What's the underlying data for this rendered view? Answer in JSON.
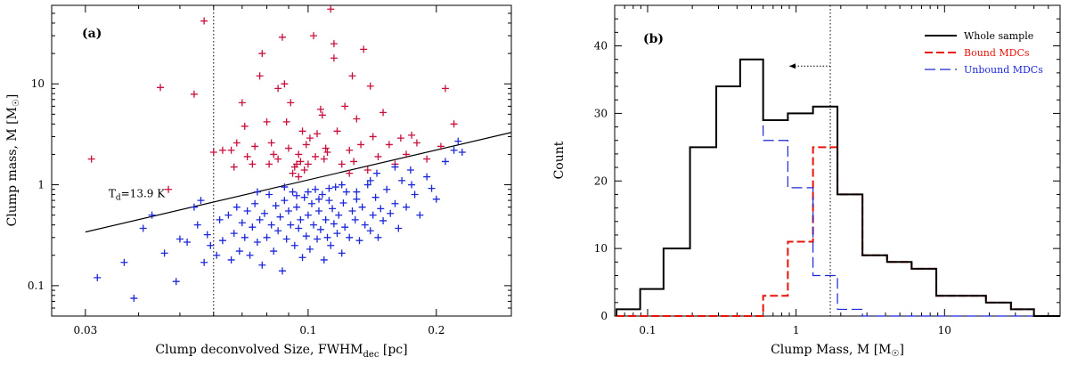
{
  "chart_data": [
    {
      "type": "scatter",
      "panel_label": "(a)",
      "xlabel_main": "Clump deconvolved Size, FWHM",
      "xlabel_sub": "dec",
      "xlabel_unit": " [pc]",
      "ylabel_main": "Clump mass, M [M",
      "ylabel_sun": "☉",
      "ylabel_close": "]",
      "xscale": "log",
      "yscale": "log",
      "xlim": [
        0.025,
        0.3
      ],
      "ylim": [
        0.05,
        60
      ],
      "xticks": [
        0.03,
        0.1,
        0.2
      ],
      "xtick_labels": [
        "0.03",
        "0.1",
        "0.2"
      ],
      "yticks": [
        0.1,
        1,
        10
      ],
      "ytick_labels": [
        "0.1",
        "1",
        "10"
      ],
      "vline_x": 0.06,
      "fit_line": {
        "x": [
          0.03,
          0.3
        ],
        "y": [
          0.34,
          3.3
        ]
      },
      "annotation_main": "T",
      "annotation_sub": "d",
      "annotation_rest": "=13.9 K",
      "annotation_at": {
        "x": 0.034,
        "y": 0.75
      },
      "colors": {
        "bound": "#c8103c",
        "unbound": "#1c28d8",
        "line": "#000000"
      },
      "series": [
        {
          "name": "Bound",
          "points": [
            [
              0.031,
              1.8
            ],
            [
              0.045,
              9.2
            ],
            [
              0.047,
              0.9
            ],
            [
              0.054,
              7.9
            ],
            [
              0.057,
              42
            ],
            [
              0.06,
              2.1
            ],
            [
              0.063,
              2.2
            ],
            [
              0.066,
              2.2
            ],
            [
              0.067,
              1.5
            ],
            [
              0.068,
              2.6
            ],
            [
              0.07,
              6.5
            ],
            [
              0.071,
              3.8
            ],
            [
              0.072,
              1.9
            ],
            [
              0.074,
              1.6
            ],
            [
              0.075,
              2.4
            ],
            [
              0.077,
              12
            ],
            [
              0.078,
              20
            ],
            [
              0.08,
              4.2
            ],
            [
              0.081,
              1.6
            ],
            [
              0.082,
              2.6
            ],
            [
              0.083,
              2.0
            ],
            [
              0.085,
              9.0
            ],
            [
              0.087,
              29
            ],
            [
              0.088,
              10
            ],
            [
              0.089,
              4.2
            ],
            [
              0.09,
              2.3
            ],
            [
              0.091,
              6.5
            ],
            [
              0.092,
              1.3
            ],
            [
              0.093,
              1.5
            ],
            [
              0.094,
              1.6
            ],
            [
              0.095,
              2.0
            ],
            [
              0.096,
              1.7
            ],
            [
              0.097,
              3.4
            ],
            [
              0.098,
              1.4
            ],
            [
              0.099,
              2.5
            ],
            [
              0.1,
              1.6
            ],
            [
              0.101,
              2.9
            ],
            [
              0.103,
              30
            ],
            [
              0.104,
              1.9
            ],
            [
              0.105,
              3.2
            ],
            [
              0.107,
              5.6
            ],
            [
              0.108,
              4.9
            ],
            [
              0.109,
              1.8
            ],
            [
              0.11,
              2.3
            ],
            [
              0.111,
              2.1
            ],
            [
              0.113,
              55
            ],
            [
              0.115,
              18
            ],
            [
              0.117,
              3.4
            ],
            [
              0.12,
              1.6
            ],
            [
              0.122,
              6.0
            ],
            [
              0.125,
              2.2
            ],
            [
              0.127,
              12
            ],
            [
              0.128,
              1.7
            ],
            [
              0.13,
              4.5
            ],
            [
              0.133,
              2.5
            ],
            [
              0.135,
              22
            ],
            [
              0.138,
              1.4
            ],
            [
              0.14,
              9.5
            ],
            [
              0.142,
              3.0
            ],
            [
              0.146,
              1.9
            ],
            [
              0.15,
              5.2
            ],
            [
              0.155,
              2.5
            ],
            [
              0.16,
              1.6
            ],
            [
              0.165,
              2.9
            ],
            [
              0.17,
              2.0
            ],
            [
              0.175,
              3.1
            ],
            [
              0.18,
              2.6
            ],
            [
              0.19,
              1.8
            ],
            [
              0.21,
              9.0
            ],
            [
              0.22,
              4.0
            ],
            [
              0.205,
              2.4
            ],
            [
              0.115,
              25
            ],
            [
              0.095,
              1.2
            ],
            [
              0.125,
              1.3
            ],
            [
              0.085,
              1.8
            ]
          ]
        },
        {
          "name": "Unbound",
          "points": [
            [
              0.032,
              0.12
            ],
            [
              0.037,
              0.17
            ],
            [
              0.039,
              0.075
            ],
            [
              0.041,
              0.37
            ],
            [
              0.043,
              0.5
            ],
            [
              0.046,
              0.21
            ],
            [
              0.049,
              0.11
            ],
            [
              0.05,
              0.29
            ],
            [
              0.052,
              0.27
            ],
            [
              0.054,
              0.6
            ],
            [
              0.055,
              0.4
            ],
            [
              0.056,
              0.7
            ],
            [
              0.057,
              0.17
            ],
            [
              0.058,
              0.32
            ],
            [
              0.059,
              0.25
            ],
            [
              0.061,
              0.2
            ],
            [
              0.062,
              0.45
            ],
            [
              0.063,
              0.28
            ],
            [
              0.065,
              0.5
            ],
            [
              0.066,
              0.18
            ],
            [
              0.067,
              0.33
            ],
            [
              0.068,
              0.6
            ],
            [
              0.069,
              0.22
            ],
            [
              0.07,
              0.42
            ],
            [
              0.071,
              0.3
            ],
            [
              0.072,
              0.55
            ],
            [
              0.073,
              0.2
            ],
            [
              0.074,
              0.38
            ],
            [
              0.075,
              0.65
            ],
            [
              0.076,
              0.27
            ],
            [
              0.077,
              0.45
            ],
            [
              0.078,
              0.16
            ],
            [
              0.079,
              0.52
            ],
            [
              0.08,
              0.3
            ],
            [
              0.081,
              0.8
            ],
            [
              0.082,
              0.4
            ],
            [
              0.083,
              0.22
            ],
            [
              0.084,
              0.62
            ],
            [
              0.085,
              0.35
            ],
            [
              0.086,
              0.48
            ],
            [
              0.087,
              0.14
            ],
            [
              0.088,
              0.7
            ],
            [
              0.089,
              0.29
            ],
            [
              0.09,
              0.55
            ],
            [
              0.091,
              0.4
            ],
            [
              0.092,
              0.85
            ],
            [
              0.093,
              0.25
            ],
            [
              0.094,
              0.6
            ],
            [
              0.095,
              0.37
            ],
            [
              0.096,
              0.45
            ],
            [
              0.097,
              0.19
            ],
            [
              0.098,
              0.75
            ],
            [
              0.099,
              0.31
            ],
            [
              0.1,
              0.5
            ],
            [
              0.101,
              0.23
            ],
            [
              0.102,
              0.65
            ],
            [
              0.103,
              0.4
            ],
            [
              0.104,
              0.9
            ],
            [
              0.105,
              0.29
            ],
            [
              0.106,
              0.55
            ],
            [
              0.107,
              0.36
            ],
            [
              0.108,
              0.8
            ],
            [
              0.109,
              0.18
            ],
            [
              0.11,
              0.45
            ],
            [
              0.111,
              0.3
            ],
            [
              0.112,
              0.7
            ],
            [
              0.113,
              0.25
            ],
            [
              0.114,
              0.58
            ],
            [
              0.115,
              0.41
            ],
            [
              0.116,
              0.95
            ],
            [
              0.117,
              0.33
            ],
            [
              0.118,
              0.5
            ],
            [
              0.12,
              0.21
            ],
            [
              0.121,
              0.66
            ],
            [
              0.122,
              0.38
            ],
            [
              0.123,
              0.85
            ],
            [
              0.125,
              0.3
            ],
            [
              0.127,
              0.55
            ],
            [
              0.129,
              0.45
            ],
            [
              0.13,
              0.72
            ],
            [
              0.132,
              0.28
            ],
            [
              0.134,
              0.6
            ],
            [
              0.136,
              0.4
            ],
            [
              0.138,
              1.0
            ],
            [
              0.14,
              0.35
            ],
            [
              0.142,
              0.5
            ],
            [
              0.144,
              0.75
            ],
            [
              0.146,
              0.3
            ],
            [
              0.148,
              0.58
            ],
            [
              0.15,
              0.44
            ],
            [
              0.153,
              0.9
            ],
            [
              0.156,
              0.52
            ],
            [
              0.16,
              0.65
            ],
            [
              0.163,
              0.37
            ],
            [
              0.166,
              1.1
            ],
            [
              0.17,
              0.6
            ],
            [
              0.174,
              1.4
            ],
            [
              0.178,
              0.8
            ],
            [
              0.183,
              0.5
            ],
            [
              0.19,
              1.2
            ],
            [
              0.195,
              0.92
            ],
            [
              0.2,
              0.72
            ],
            [
              0.21,
              1.7
            ],
            [
              0.22,
              2.2
            ],
            [
              0.23,
              2.1
            ],
            [
              0.225,
              2.7
            ],
            [
              0.088,
              0.95
            ],
            [
              0.1,
              0.85
            ],
            [
              0.112,
              0.92
            ],
            [
              0.076,
              0.85
            ],
            [
              0.094,
              0.78
            ],
            [
              0.106,
              0.72
            ],
            [
              0.13,
              0.85
            ],
            [
              0.145,
              1.3
            ],
            [
              0.16,
              1.5
            ],
            [
              0.175,
              1.0
            ],
            [
              0.12,
              1.0
            ],
            [
              0.14,
              1.1
            ]
          ]
        }
      ]
    },
    {
      "type": "histogram",
      "panel_label": "(b)",
      "xlabel_main": "Clump Mass, M [M",
      "xlabel_sun": "☉",
      "xlabel_close": "]",
      "ylabel": "Count",
      "xscale": "log",
      "xlim": [
        0.06,
        60
      ],
      "ylim": [
        0,
        46
      ],
      "xticks": [
        0.1,
        1,
        10
      ],
      "xtick_labels": [
        "0.1",
        "1",
        "10"
      ],
      "yticks": [
        0,
        10,
        20,
        30,
        40
      ],
      "ytick_labels": [
        "0",
        "10",
        "20",
        "30",
        "40"
      ],
      "vline_x": 1.7,
      "arrow": {
        "from": {
          "x": 1.7,
          "y": 37
        },
        "to": {
          "x": 0.9,
          "y": 37
        }
      },
      "legend": [
        {
          "label": "Whole sample",
          "color": "#000000",
          "style": "solid"
        },
        {
          "label": "Bound MDCs",
          "color": "#e8140c",
          "style": "dashed"
        },
        {
          "label": "Unbound MDCs",
          "color": "#1c28d8",
          "style": "longdash"
        }
      ],
      "bin_edges": [
        0.0617,
        0.0891,
        0.128,
        0.193,
        0.29,
        0.42,
        0.6,
        0.88,
        1.3,
        1.9,
        2.8,
        4.1,
        6.0,
        8.8,
        13,
        19,
        28,
        40,
        60
      ],
      "series": [
        {
          "name": "Whole sample",
          "color": "#000000",
          "values": [
            1,
            4,
            10,
            25,
            34,
            38,
            29,
            30,
            31,
            18,
            9,
            8,
            7,
            3,
            3,
            2,
            1,
            0
          ]
        },
        {
          "name": "Bound MDCs",
          "color": "#e8140c",
          "values": [
            0,
            0,
            0,
            0,
            0,
            0,
            3,
            11,
            25,
            18,
            9,
            8,
            7,
            3,
            3,
            2,
            1,
            0
          ]
        },
        {
          "name": "Unbound MDCs",
          "color": "#1c28d8",
          "values": [
            1,
            4,
            10,
            25,
            34,
            38,
            26,
            19,
            6,
            1,
            0,
            0,
            0,
            0,
            0,
            0,
            0,
            0
          ]
        }
      ]
    }
  ]
}
